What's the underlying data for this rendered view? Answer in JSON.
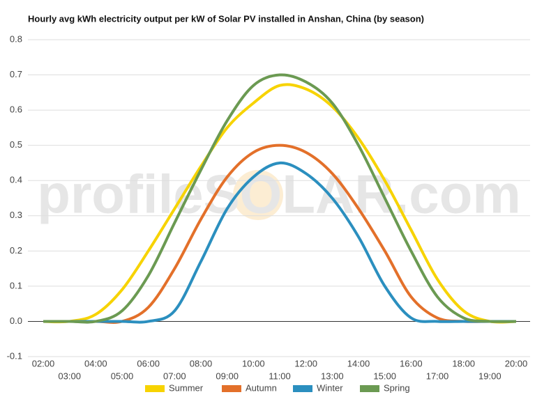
{
  "chart_data": {
    "type": "line",
    "title": "Hourly avg kWh electricity output per kW of Solar PV installed in Anshan, China (by season)",
    "watermark": "profileSOLAR.com",
    "categories": [
      "02:00",
      "03:00",
      "04:00",
      "05:00",
      "06:00",
      "07:00",
      "08:00",
      "09:00",
      "10:00",
      "11:00",
      "12:00",
      "13:00",
      "14:00",
      "15:00",
      "16:00",
      "17:00",
      "18:00",
      "19:00",
      "20:00"
    ],
    "series": [
      {
        "name": "Summer",
        "color": "#f7d300",
        "values": [
          0,
          0,
          0.02,
          0.09,
          0.2,
          0.32,
          0.44,
          0.55,
          0.62,
          0.67,
          0.66,
          0.61,
          0.52,
          0.4,
          0.26,
          0.12,
          0.03,
          0,
          0
        ]
      },
      {
        "name": "Autumn",
        "color": "#e3702a",
        "values": [
          0,
          0,
          0,
          0,
          0.04,
          0.15,
          0.29,
          0.41,
          0.48,
          0.5,
          0.48,
          0.42,
          0.32,
          0.2,
          0.07,
          0.01,
          0,
          0,
          0
        ]
      },
      {
        "name": "Winter",
        "color": "#2b8fbf",
        "values": [
          0,
          0,
          0,
          0,
          0,
          0.03,
          0.17,
          0.32,
          0.41,
          0.45,
          0.42,
          0.35,
          0.24,
          0.1,
          0.01,
          0,
          0,
          0,
          0
        ]
      },
      {
        "name": "Spring",
        "color": "#6b9a52",
        "values": [
          0,
          0,
          0,
          0.03,
          0.13,
          0.28,
          0.43,
          0.57,
          0.67,
          0.7,
          0.68,
          0.62,
          0.5,
          0.35,
          0.2,
          0.07,
          0.01,
          0,
          0
        ]
      }
    ],
    "ylim": [
      -0.1,
      0.8
    ],
    "yticks": [
      -0.1,
      {
        "value": 0,
        "label": "0.0"
      },
      0.1,
      0.2,
      0.3,
      0.4,
      0.5,
      0.6,
      0.7,
      0.8
    ],
    "grid": true,
    "legend": "bottom"
  }
}
